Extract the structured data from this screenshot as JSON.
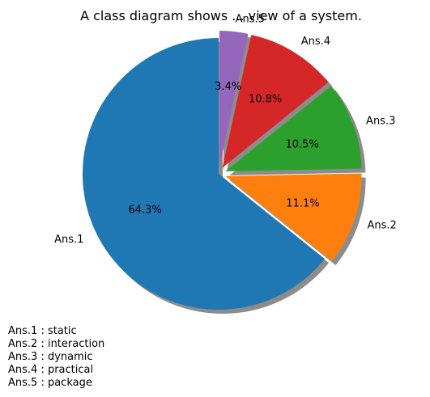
{
  "chart_data": {
    "type": "pie",
    "title": "A class diagram shows ... view of a system.",
    "labels": [
      "Ans.1",
      "Ans.2",
      "Ans.3",
      "Ans.4",
      "Ans.5"
    ],
    "values": [
      64.3,
      11.1,
      10.5,
      10.8,
      3.4
    ],
    "percent_labels": [
      "64.3%",
      "11.1%",
      "10.5%",
      "10.8%",
      "3.4%"
    ],
    "colors": [
      "#1f77b4",
      "#ff7f0e",
      "#2ca02c",
      "#d62728",
      "#9467bd"
    ],
    "exploded": [
      "Ans.2",
      "Ans.3",
      "Ans.4",
      "Ans.5"
    ],
    "shadow": true,
    "start_angle_deg": 90,
    "direction": "counterclockwise"
  },
  "notes": [
    "Ans.1 : static",
    "Ans.2 : interaction",
    "Ans.3 : dynamic",
    "Ans.4 : practical",
    "Ans.5 : package"
  ]
}
